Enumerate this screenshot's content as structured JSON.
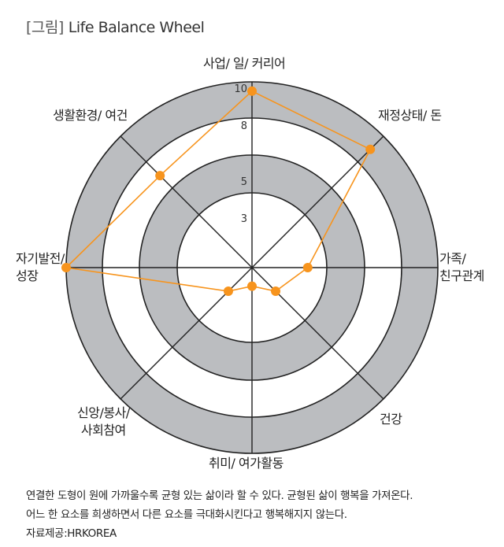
{
  "figure": {
    "tag": "[그림]",
    "title": "Life Balance Wheel"
  },
  "chart_data": {
    "type": "radar",
    "title": "Life Balance Wheel",
    "axes": [
      "사업/ 일/ 커리어",
      "재정상태/ 돈",
      "가족/\n친구관계",
      "건강",
      "취미/ 여가활동",
      "신앙/봉사/\n사회참여",
      "자기발전/\n성장",
      "생활환경/ 여건"
    ],
    "scale_ticks": [
      3,
      5,
      8,
      10
    ],
    "range": [
      0,
      10
    ],
    "values": [
      9.5,
      9.0,
      3.0,
      1.8,
      1.0,
      1.8,
      10.0,
      7.0
    ],
    "line_color": "#f7941d",
    "ring_fill_outer": "#bbbdc0",
    "ring_fill_inner": "#ffffff",
    "grid": true
  },
  "notes": [
    "연결한 도형이 원에 가까울수록 균형 있는 삶이라 할 수 있다. 균형된 삶이 행복을 가져온다.",
    "어느 한 요소를 희생하면서 다른 요소를 극대화시킨다고 행복해지지 않는다.",
    "자료제공:HRKOREA"
  ]
}
